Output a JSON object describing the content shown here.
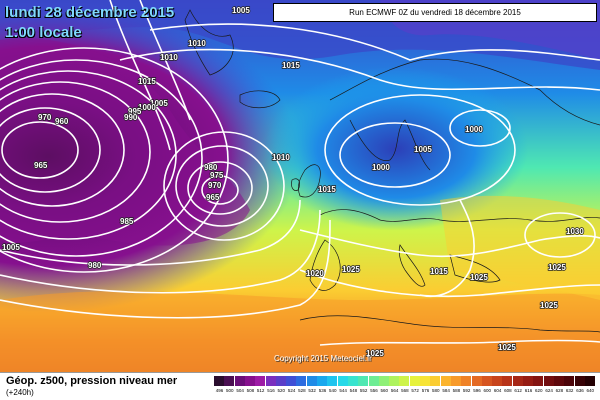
{
  "map": {
    "date_title": "lundi 28 décembre 2015",
    "time_title": "1:00 locale",
    "run_label": "Run ECMWF 0Z du vendredi 18 décembre 2015",
    "copyright": "Copyright 2015 Meteociel.fr"
  },
  "legend": {
    "title": "Géop. z500, pression niveau mer",
    "lead_time": "(+240h)",
    "scale_values": [
      "496",
      "500",
      "504",
      "508",
      "512",
      "516",
      "520",
      "524",
      "528",
      "532",
      "536",
      "540",
      "544",
      "548",
      "552",
      "556",
      "560",
      "564",
      "568",
      "572",
      "576",
      "580",
      "584",
      "588",
      "592",
      "596",
      "600",
      "604",
      "608",
      "612",
      "616",
      "620",
      "624",
      "628",
      "632",
      "636",
      "640"
    ],
    "scale_colors": [
      "#2a0d2e",
      "#4a0f52",
      "#6a0e78",
      "#86108e",
      "#9d1ba6",
      "#7a2fbf",
      "#5a3ec9",
      "#3f4fd6",
      "#2c6ce0",
      "#1f8be7",
      "#19a8ee",
      "#1fc4ef",
      "#27d9e8",
      "#38e4cf",
      "#4fe8b2",
      "#6ded94",
      "#8ef077",
      "#aef35e",
      "#cef44a",
      "#e6f23c",
      "#f7e436",
      "#fbcd32",
      "#fbb42e",
      "#f79a2a",
      "#ef8227",
      "#e46a24",
      "#d65520",
      "#c8441c",
      "#b83419",
      "#a72716",
      "#961c13",
      "#841411",
      "#720d0f",
      "#5f080c",
      "#4c0409",
      "#380206",
      "#240003"
    ]
  },
  "pressure_labels": [
    {
      "text": "1005",
      "id": "p1005-top"
    },
    {
      "text": "1010",
      "id": "p1010-a"
    },
    {
      "text": "1010",
      "id": "p1010-b"
    },
    {
      "text": "1015",
      "id": "p1015-ice"
    },
    {
      "text": "1015",
      "id": "p1015-n"
    },
    {
      "text": "1005",
      "id": "p1005-mid"
    },
    {
      "text": "1000",
      "id": "p1000-w"
    },
    {
      "text": "995",
      "id": "p995"
    },
    {
      "text": "970",
      "id": "p970"
    },
    {
      "text": "960",
      "id": "p960"
    },
    {
      "text": "990",
      "id": "p990"
    },
    {
      "text": "965",
      "id": "p965-w"
    },
    {
      "text": "980",
      "id": "p980"
    },
    {
      "text": "975",
      "id": "p975"
    },
    {
      "text": "970",
      "id": "p970-c"
    },
    {
      "text": "965",
      "id": "p965-c"
    },
    {
      "text": "985",
      "id": "p985"
    },
    {
      "text": "980",
      "id": "p980-s"
    },
    {
      "text": "1005",
      "id": "p1005-sw"
    },
    {
      "text": "1010",
      "id": "p1010-c"
    },
    {
      "text": "1015",
      "id": "p1015-c"
    },
    {
      "text": "1000",
      "id": "p1000-scan"
    },
    {
      "text": "1005",
      "id": "p1005-scan"
    },
    {
      "text": "1000",
      "id": "p1000-e"
    },
    {
      "text": "1020",
      "id": "p1020"
    },
    {
      "text": "1025",
      "id": "p1025-a"
    },
    {
      "text": "1015",
      "id": "p1015-it"
    },
    {
      "text": "1025",
      "id": "p1025-b"
    },
    {
      "text": "1030",
      "id": "p1030"
    },
    {
      "text": "1025",
      "id": "p1025-e"
    },
    {
      "text": "1025",
      "id": "p1025-se"
    },
    {
      "text": "1025",
      "id": "p1025-s"
    },
    {
      "text": "1025",
      "id": "p1025-af"
    }
  ]
}
